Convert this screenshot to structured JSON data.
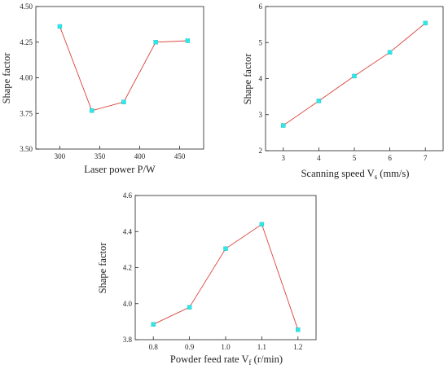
{
  "chart_data": [
    {
      "type": "line",
      "xlabel": "Laser power P/W",
      "ylabel": "Shape factor",
      "x": [
        300,
        340,
        380,
        420,
        460
      ],
      "series": [
        {
          "values": [
            4.36,
            3.77,
            3.83,
            4.25,
            4.26
          ]
        }
      ],
      "xlim": [
        270,
        480
      ],
      "ylim": [
        3.5,
        4.5
      ],
      "xticks": [
        "300",
        "350",
        "400",
        "450"
      ],
      "yticks": [
        "3.50",
        "3.75",
        "4.00",
        "4.25",
        "4.50"
      ],
      "grid": false,
      "line_color": "#d9403a",
      "marker_color": "#2ee8e8"
    },
    {
      "type": "line",
      "xlabel": "Scanning speed V",
      "xlabel_sub": "s",
      "xlabel_suffix": " (mm/s)",
      "ylabel": "Shape factor",
      "x": [
        3,
        4,
        5,
        6,
        7
      ],
      "series": [
        {
          "values": [
            2.7,
            3.38,
            4.07,
            4.73,
            5.54
          ]
        }
      ],
      "xlim": [
        2.5,
        7.5
      ],
      "ylim": [
        2,
        6
      ],
      "xticks": [
        "3",
        "4",
        "5",
        "6",
        "7"
      ],
      "yticks": [
        "2",
        "3",
        "4",
        "5",
        "6"
      ],
      "grid": false,
      "line_color": "#d9403a",
      "marker_color": "#2ee8e8"
    },
    {
      "type": "line",
      "xlabel": "Powder feed rate V",
      "xlabel_sub": "f",
      "xlabel_suffix": " (r/min)",
      "ylabel": "Shape factor",
      "x": [
        0.8,
        0.9,
        1.0,
        1.1,
        1.2
      ],
      "series": [
        {
          "values": [
            3.885,
            3.98,
            4.305,
            4.44,
            3.855
          ]
        }
      ],
      "xlim": [
        0.75,
        1.25
      ],
      "ylim": [
        3.8,
        4.6
      ],
      "xticks": [
        "0.8",
        "0.9",
        "1.0",
        "1.1",
        "1.2"
      ],
      "yticks": [
        "3.8",
        "4.0",
        "4.2",
        "4.4",
        "4.6"
      ],
      "grid": false,
      "line_color": "#d9403a",
      "marker_color": "#2ee8e8"
    }
  ]
}
